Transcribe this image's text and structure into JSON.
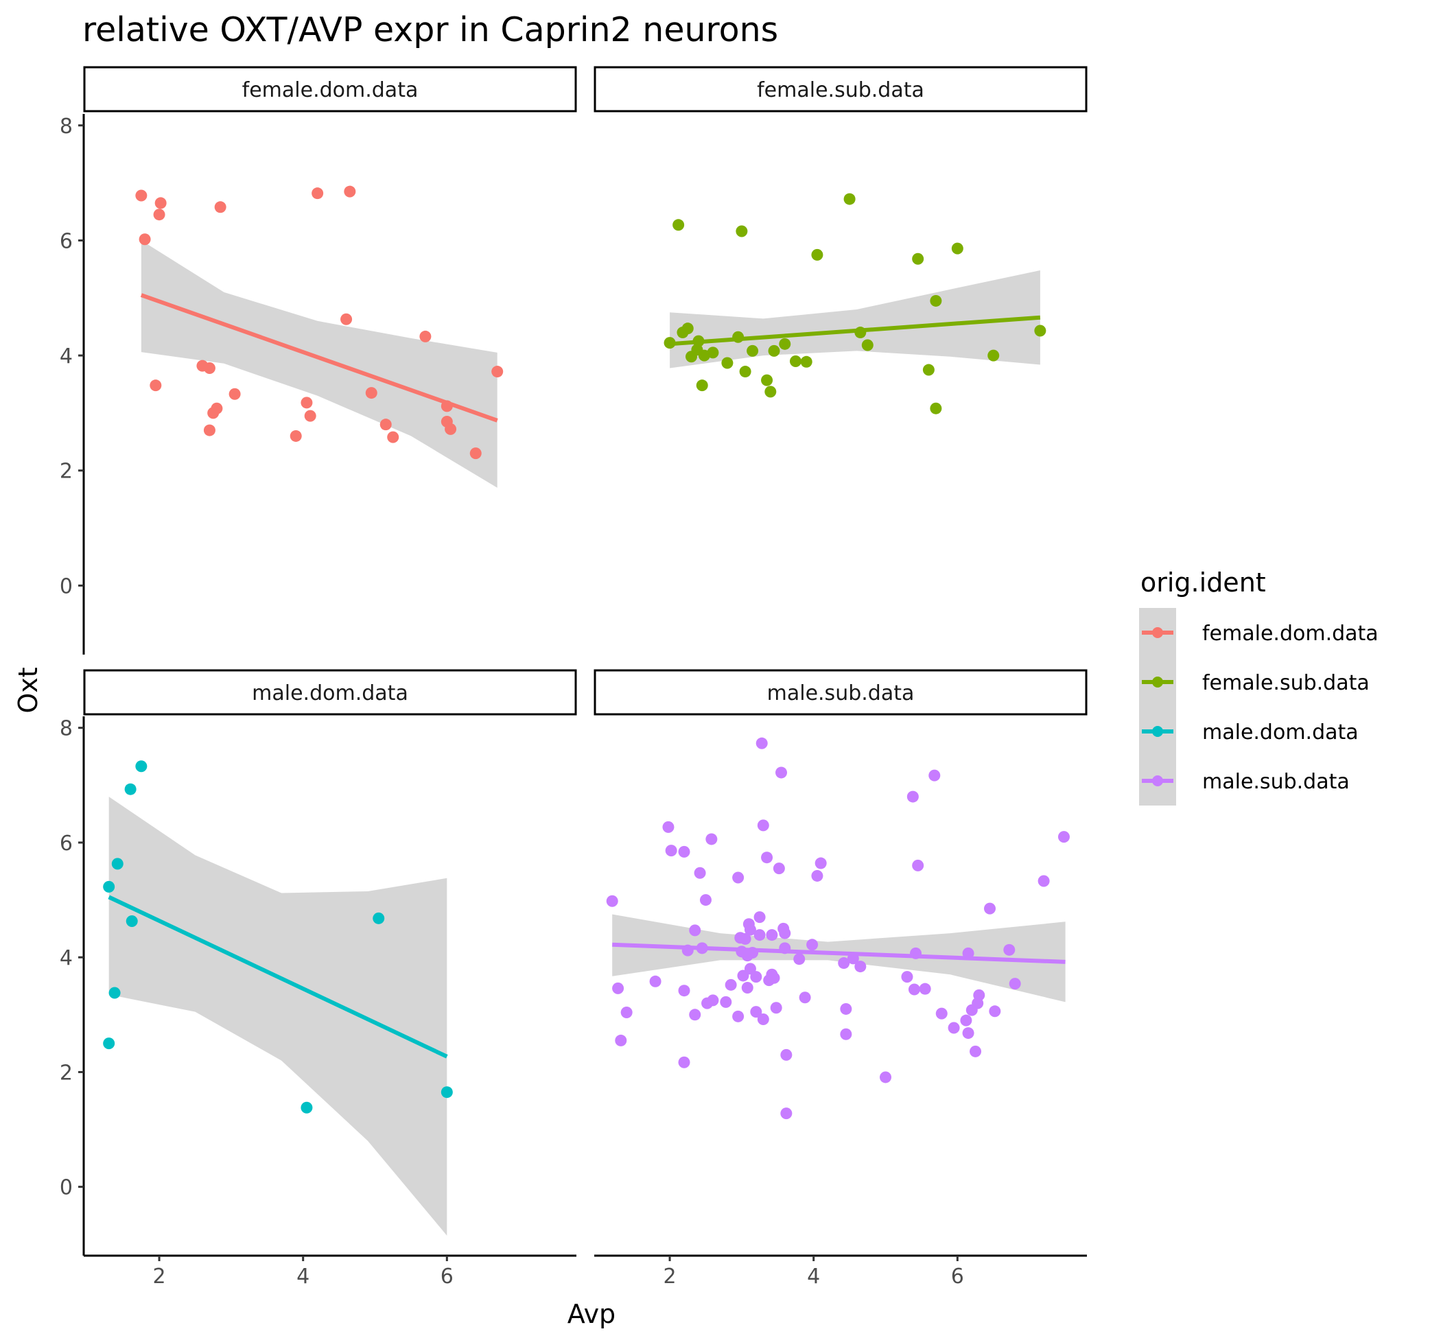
{
  "chart_data": {
    "type": "scatter",
    "title": "relative OXT/AVP expr in Caprin2 neurons",
    "xlabel": "Avp",
    "ylabel": "Oxt",
    "xlim": [
      0.95,
      7.8
    ],
    "ylim": [
      -1.2,
      8.2
    ],
    "x_ticks": [
      "2",
      "4",
      "6"
    ],
    "x_tick_values": [
      2,
      4,
      6
    ],
    "y_ticks": [
      "0",
      "2",
      "4",
      "6",
      "8"
    ],
    "y_tick_values": [
      0,
      2,
      4,
      6,
      8
    ],
    "grid": false,
    "legend": {
      "title": "orig.ident",
      "position": "right"
    },
    "series": [
      {
        "name": "female.dom.data",
        "color": "#F8766D",
        "fit": {
          "x": [
            1.75,
            6.7
          ],
          "y": [
            5.05,
            2.87
          ]
        },
        "band": {
          "x": [
            1.75,
            2.9,
            4.2,
            5.5,
            6.7
          ],
          "lower": [
            4.06,
            3.86,
            3.3,
            2.6,
            1.7
          ],
          "upper": [
            6.0,
            5.1,
            4.6,
            4.3,
            4.05
          ]
        },
        "points": [
          [
            1.75,
            6.78
          ],
          [
            1.8,
            6.02
          ],
          [
            2.0,
            6.45
          ],
          [
            2.02,
            6.65
          ],
          [
            1.95,
            3.48
          ],
          [
            2.6,
            3.82
          ],
          [
            2.7,
            3.78
          ],
          [
            2.7,
            2.7
          ],
          [
            2.75,
            3.0
          ],
          [
            2.8,
            3.08
          ],
          [
            2.85,
            6.58
          ],
          [
            3.05,
            3.33
          ],
          [
            3.9,
            2.6
          ],
          [
            4.05,
            3.18
          ],
          [
            4.1,
            2.95
          ],
          [
            4.2,
            6.82
          ],
          [
            4.6,
            4.63
          ],
          [
            4.65,
            6.85
          ],
          [
            4.95,
            3.35
          ],
          [
            5.15,
            2.8
          ],
          [
            5.25,
            2.58
          ],
          [
            5.7,
            4.33
          ],
          [
            6.0,
            3.12
          ],
          [
            6.0,
            2.85
          ],
          [
            6.05,
            2.72
          ],
          [
            6.4,
            2.3
          ],
          [
            6.7,
            3.72
          ]
        ]
      },
      {
        "name": "female.sub.data",
        "color": "#7CAE00",
        "fit": {
          "x": [
            2.0,
            7.15
          ],
          "y": [
            4.2,
            4.66
          ]
        },
        "band": {
          "x": [
            2.0,
            3.3,
            4.6,
            5.9,
            7.15
          ],
          "lower": [
            3.78,
            4.0,
            4.08,
            3.98,
            3.84
          ],
          "upper": [
            4.75,
            4.64,
            4.8,
            5.15,
            5.48
          ]
        },
        "points": [
          [
            2.0,
            4.22
          ],
          [
            2.12,
            6.27
          ],
          [
            2.18,
            4.4
          ],
          [
            2.25,
            4.47
          ],
          [
            2.3,
            3.98
          ],
          [
            2.38,
            4.1
          ],
          [
            2.4,
            4.25
          ],
          [
            2.45,
            3.48
          ],
          [
            2.48,
            4.0
          ],
          [
            2.6,
            4.05
          ],
          [
            2.8,
            3.87
          ],
          [
            2.95,
            4.32
          ],
          [
            3.0,
            6.16
          ],
          [
            3.05,
            3.72
          ],
          [
            3.15,
            4.08
          ],
          [
            3.35,
            3.57
          ],
          [
            3.4,
            3.37
          ],
          [
            3.45,
            4.08
          ],
          [
            3.6,
            4.2
          ],
          [
            3.75,
            3.9
          ],
          [
            3.9,
            3.89
          ],
          [
            4.05,
            5.75
          ],
          [
            4.5,
            6.72
          ],
          [
            4.65,
            4.4
          ],
          [
            4.75,
            4.18
          ],
          [
            5.45,
            5.68
          ],
          [
            5.6,
            3.75
          ],
          [
            5.7,
            3.08
          ],
          [
            5.7,
            4.95
          ],
          [
            6.0,
            5.86
          ],
          [
            6.5,
            4.0
          ],
          [
            7.15,
            4.43
          ]
        ]
      },
      {
        "name": "male.dom.data",
        "color": "#00BFC4",
        "fit": {
          "x": [
            1.3,
            6.0
          ],
          "y": [
            5.05,
            2.27
          ]
        },
        "band": {
          "x": [
            1.3,
            2.5,
            3.7,
            4.9,
            6.0
          ],
          "lower": [
            3.35,
            3.05,
            2.2,
            0.8,
            -0.85
          ],
          "upper": [
            6.8,
            5.78,
            5.12,
            5.15,
            5.38
          ]
        },
        "points": [
          [
            1.3,
            5.23
          ],
          [
            1.3,
            2.5
          ],
          [
            1.38,
            3.38
          ],
          [
            1.42,
            5.63
          ],
          [
            1.6,
            6.93
          ],
          [
            1.62,
            4.63
          ],
          [
            1.75,
            7.33
          ],
          [
            4.05,
            1.38
          ],
          [
            5.05,
            4.68
          ],
          [
            6.0,
            1.65
          ]
        ]
      },
      {
        "name": "male.sub.data",
        "color": "#C77CFF",
        "fit": {
          "x": [
            1.2,
            7.5
          ],
          "y": [
            4.22,
            3.92
          ]
        },
        "band": {
          "x": [
            1.2,
            2.7,
            4.2,
            5.9,
            7.5
          ],
          "lower": [
            3.67,
            3.95,
            3.95,
            3.7,
            3.22
          ],
          "upper": [
            4.75,
            4.42,
            4.27,
            4.42,
            4.62
          ]
        },
        "points": [
          [
            1.2,
            4.98
          ],
          [
            1.28,
            3.46
          ],
          [
            1.32,
            2.55
          ],
          [
            1.4,
            3.04
          ],
          [
            1.8,
            3.58
          ],
          [
            1.98,
            6.27
          ],
          [
            2.02,
            5.86
          ],
          [
            2.2,
            5.84
          ],
          [
            2.2,
            3.42
          ],
          [
            2.2,
            2.17
          ],
          [
            2.25,
            4.12
          ],
          [
            2.35,
            4.47
          ],
          [
            2.35,
            3.0
          ],
          [
            2.42,
            5.47
          ],
          [
            2.45,
            4.16
          ],
          [
            2.5,
            5.0
          ],
          [
            2.52,
            3.2
          ],
          [
            2.58,
            6.06
          ],
          [
            2.6,
            3.25
          ],
          [
            2.78,
            3.22
          ],
          [
            2.85,
            3.52
          ],
          [
            2.95,
            5.39
          ],
          [
            2.95,
            2.97
          ],
          [
            2.98,
            4.34
          ],
          [
            3.0,
            4.1
          ],
          [
            3.02,
            3.68
          ],
          [
            3.05,
            4.32
          ],
          [
            3.08,
            4.03
          ],
          [
            3.08,
            3.47
          ],
          [
            3.1,
            4.58
          ],
          [
            3.12,
            4.48
          ],
          [
            3.12,
            3.8
          ],
          [
            3.15,
            4.08
          ],
          [
            3.2,
            3.05
          ],
          [
            3.2,
            3.66
          ],
          [
            3.25,
            4.7
          ],
          [
            3.25,
            4.39
          ],
          [
            3.28,
            7.73
          ],
          [
            3.3,
            6.3
          ],
          [
            3.3,
            2.92
          ],
          [
            3.35,
            5.74
          ],
          [
            3.38,
            3.6
          ],
          [
            3.42,
            3.7
          ],
          [
            3.42,
            4.39
          ],
          [
            3.45,
            3.64
          ],
          [
            3.48,
            3.12
          ],
          [
            3.52,
            5.55
          ],
          [
            3.55,
            7.22
          ],
          [
            3.58,
            4.5
          ],
          [
            3.6,
            4.16
          ],
          [
            3.6,
            4.42
          ],
          [
            3.62,
            2.3
          ],
          [
            3.62,
            1.28
          ],
          [
            3.8,
            3.97
          ],
          [
            3.88,
            3.3
          ],
          [
            3.98,
            4.22
          ],
          [
            4.05,
            5.42
          ],
          [
            4.1,
            5.64
          ],
          [
            4.42,
            3.9
          ],
          [
            4.45,
            3.1
          ],
          [
            4.45,
            2.66
          ],
          [
            4.55,
            3.98
          ],
          [
            4.65,
            3.84
          ],
          [
            5.0,
            1.91
          ],
          [
            5.3,
            3.66
          ],
          [
            5.38,
            6.8
          ],
          [
            5.4,
            3.44
          ],
          [
            5.42,
            4.07
          ],
          [
            5.45,
            5.6
          ],
          [
            5.55,
            3.45
          ],
          [
            5.68,
            7.17
          ],
          [
            5.78,
            3.02
          ],
          [
            5.95,
            2.77
          ],
          [
            6.12,
            2.9
          ],
          [
            6.15,
            2.68
          ],
          [
            6.15,
            4.07
          ],
          [
            6.2,
            3.08
          ],
          [
            6.25,
            2.36
          ],
          [
            6.28,
            3.2
          ],
          [
            6.3,
            3.34
          ],
          [
            6.45,
            4.85
          ],
          [
            6.52,
            3.06
          ],
          [
            6.72,
            4.13
          ],
          [
            6.8,
            3.54
          ],
          [
            7.2,
            5.33
          ],
          [
            7.48,
            6.1
          ]
        ]
      }
    ]
  },
  "strips": [
    "female.dom.data",
    "female.sub.data",
    "male.dom.data",
    "male.sub.data"
  ]
}
